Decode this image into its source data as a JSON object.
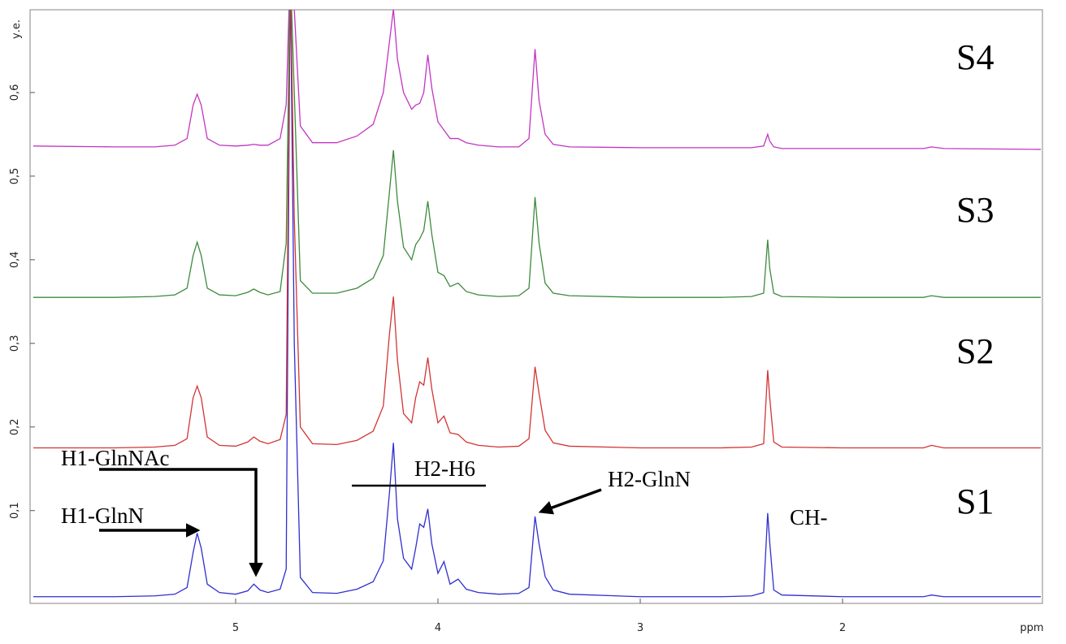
{
  "chart_data": {
    "type": "line",
    "x_label": "ppm",
    "y_label": "у.е.",
    "xlim": [
      6.016,
      1.012
    ],
    "ylim": [
      -0.011,
      0.699
    ],
    "xticks": [
      5,
      4,
      3,
      2
    ],
    "yticks": [
      {
        "value": 0.1,
        "label": "0,1"
      },
      {
        "value": 0.2,
        "label": "0,2"
      },
      {
        "value": 0.3,
        "label": "0,3"
      },
      {
        "value": 0.4,
        "label": "0,4"
      },
      {
        "value": 0.5,
        "label": "0,5"
      },
      {
        "value": 0.6,
        "label": "0,6"
      }
    ],
    "x": [
      6.0,
      5.6,
      5.4,
      5.3,
      5.24,
      5.21,
      5.19,
      5.17,
      5.14,
      5.08,
      5.0,
      4.94,
      4.91,
      4.88,
      4.84,
      4.78,
      4.75,
      4.73,
      4.71,
      4.68,
      4.62,
      4.5,
      4.4,
      4.32,
      4.27,
      4.24,
      4.22,
      4.2,
      4.17,
      4.13,
      4.11,
      4.09,
      4.07,
      4.05,
      4.03,
      4.0,
      3.97,
      3.94,
      3.9,
      3.86,
      3.8,
      3.7,
      3.6,
      3.55,
      3.52,
      3.5,
      3.47,
      3.43,
      3.35,
      3.0,
      2.6,
      2.45,
      2.39,
      2.37,
      2.36,
      2.34,
      2.3,
      2.0,
      1.6,
      1.56,
      1.5,
      1.02
    ],
    "series": [
      {
        "name": "S1",
        "color": "#2f2fd0",
        "values": [
          -0.003,
          -0.003,
          -0.002,
          0.0,
          0.008,
          0.05,
          0.073,
          0.055,
          0.012,
          0.002,
          0.0,
          0.004,
          0.012,
          0.005,
          0.002,
          0.006,
          0.03,
          0.75,
          0.3,
          0.02,
          0.002,
          0.001,
          0.006,
          0.015,
          0.04,
          0.12,
          0.181,
          0.09,
          0.043,
          0.03,
          0.055,
          0.084,
          0.08,
          0.102,
          0.06,
          0.025,
          0.039,
          0.012,
          0.018,
          0.006,
          0.002,
          0.0,
          0.001,
          0.008,
          0.093,
          0.06,
          0.021,
          0.005,
          0.0,
          -0.003,
          -0.003,
          -0.002,
          0.002,
          0.097,
          0.062,
          0.005,
          -0.001,
          -0.003,
          -0.003,
          -0.001,
          -0.003,
          -0.003
        ]
      },
      {
        "name": "S2",
        "color": "#d23434",
        "values": [
          0.175,
          0.175,
          0.176,
          0.178,
          0.186,
          0.235,
          0.249,
          0.235,
          0.188,
          0.178,
          0.177,
          0.182,
          0.188,
          0.183,
          0.18,
          0.185,
          0.215,
          0.75,
          0.45,
          0.2,
          0.18,
          0.179,
          0.184,
          0.195,
          0.225,
          0.31,
          0.356,
          0.28,
          0.216,
          0.205,
          0.235,
          0.254,
          0.25,
          0.283,
          0.245,
          0.205,
          0.213,
          0.193,
          0.191,
          0.182,
          0.178,
          0.176,
          0.177,
          0.186,
          0.272,
          0.24,
          0.196,
          0.181,
          0.177,
          0.175,
          0.175,
          0.176,
          0.18,
          0.268,
          0.235,
          0.182,
          0.176,
          0.175,
          0.175,
          0.178,
          0.175,
          0.175
        ]
      },
      {
        "name": "S3",
        "color": "#3d8a3d",
        "values": [
          0.355,
          0.355,
          0.356,
          0.358,
          0.366,
          0.405,
          0.421,
          0.405,
          0.366,
          0.358,
          0.357,
          0.361,
          0.365,
          0.361,
          0.358,
          0.362,
          0.42,
          0.75,
          0.6,
          0.375,
          0.36,
          0.36,
          0.366,
          0.378,
          0.405,
          0.48,
          0.531,
          0.47,
          0.415,
          0.4,
          0.418,
          0.425,
          0.435,
          0.47,
          0.43,
          0.385,
          0.381,
          0.368,
          0.372,
          0.362,
          0.358,
          0.356,
          0.357,
          0.366,
          0.475,
          0.42,
          0.372,
          0.36,
          0.357,
          0.355,
          0.355,
          0.356,
          0.36,
          0.424,
          0.39,
          0.36,
          0.356,
          0.355,
          0.355,
          0.357,
          0.355,
          0.355
        ]
      },
      {
        "name": "S4",
        "color": "#c235c2",
        "values": [
          0.536,
          0.535,
          0.535,
          0.537,
          0.545,
          0.585,
          0.598,
          0.585,
          0.545,
          0.537,
          0.536,
          0.537,
          0.538,
          0.537,
          0.537,
          0.545,
          0.585,
          0.75,
          0.7,
          0.56,
          0.54,
          0.54,
          0.548,
          0.562,
          0.6,
          0.66,
          0.7,
          0.64,
          0.6,
          0.58,
          0.585,
          0.587,
          0.6,
          0.645,
          0.605,
          0.565,
          0.555,
          0.545,
          0.545,
          0.54,
          0.537,
          0.535,
          0.535,
          0.545,
          0.652,
          0.59,
          0.55,
          0.538,
          0.535,
          0.534,
          0.534,
          0.534,
          0.536,
          0.55,
          0.542,
          0.535,
          0.533,
          0.533,
          0.533,
          0.535,
          0.533,
          0.532
        ]
      }
    ],
    "annotations": [
      "H1-GlnNAc",
      "H1-GlnN",
      "H2-H6",
      "H2-GlnN",
      "CH-"
    ]
  }
}
